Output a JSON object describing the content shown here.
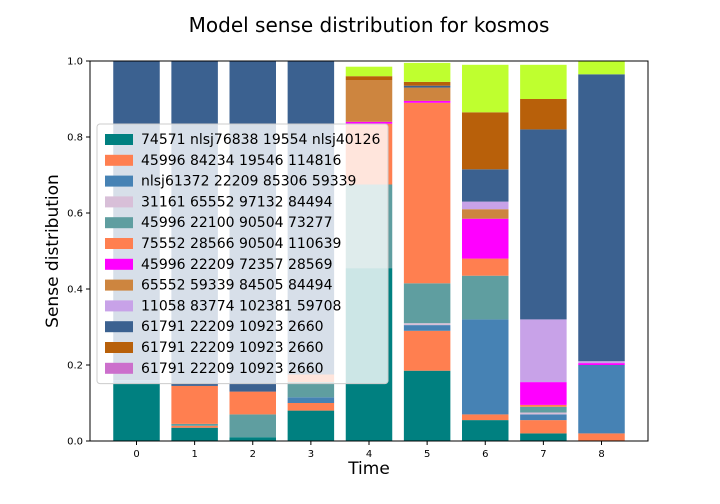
{
  "chart_data": {
    "type": "bar",
    "stacked": true,
    "title": "Model sense distribution for kosmos",
    "xlabel": "Time",
    "ylabel": "Sense distribution",
    "categories": [
      "0",
      "1",
      "2",
      "3",
      "4",
      "5",
      "6",
      "7",
      "8"
    ],
    "ylim": [
      0,
      1.0
    ],
    "yticks": [
      "0.0",
      "0.2",
      "0.4",
      "0.6",
      "0.8",
      "1.0"
    ],
    "grid": false,
    "legend_position": "center-left",
    "series": [
      {
        "name": "74571 nlsj76838 19554 nlsj40126",
        "color": "#008080",
        "values": [
          0.15,
          0.035,
          0.01,
          0.08,
          0.455,
          0.185,
          0.055,
          0.02,
          0.0
        ]
      },
      {
        "name": "45996 84234 19546 114816",
        "color": "#FF7F50",
        "values": [
          0.0,
          0.005,
          0.0,
          0.02,
          0.0,
          0.105,
          0.015,
          0.035,
          0.02
        ]
      },
      {
        "name": "nlsj61372 22209 85306 59339",
        "color": "#4682B4",
        "values": [
          0.01,
          0.0,
          0.0,
          0.015,
          0.0,
          0.015,
          0.25,
          0.015,
          0.18
        ]
      },
      {
        "name": "31161 65552 97132 84494",
        "color": "#D8BFD8",
        "values": [
          0.0,
          0.0,
          0.0,
          0.0,
          0.0,
          0.005,
          0.0,
          0.005,
          0.0
        ]
      },
      {
        "name": "45996 22100 90504 73277",
        "color": "#5F9EA0",
        "values": [
          0.0,
          0.005,
          0.06,
          0.04,
          0.22,
          0.105,
          0.115,
          0.015,
          0.0
        ]
      },
      {
        "name": "75552 28566 90504 110639",
        "color": "#FF7F50",
        "values": [
          0.0,
          0.1,
          0.06,
          0.02,
          0.16,
          0.475,
          0.045,
          0.005,
          0.0
        ]
      },
      {
        "name": "45996 22209 72357 28569",
        "color": "#FF00FF",
        "values": [
          0.0,
          0.0,
          0.0,
          0.0,
          0.005,
          0.005,
          0.105,
          0.06,
          0.005
        ]
      },
      {
        "name": "65552 59339 84505 84494",
        "color": "#CD853F",
        "values": [
          0.0,
          0.0,
          0.0,
          0.0,
          0.11,
          0.035,
          0.025,
          0.0,
          0.0
        ]
      },
      {
        "name": "11058 83774 102381 59708",
        "color": "#C8A2E8",
        "values": [
          0.0,
          0.0,
          0.0,
          0.0,
          0.0,
          0.0,
          0.02,
          0.165,
          0.005
        ]
      },
      {
        "name": "61791 22209 10923 2660",
        "color": "#3B6190",
        "values": [
          0.84,
          0.855,
          0.87,
          0.825,
          0.0,
          0.005,
          0.085,
          0.5,
          0.755
        ]
      },
      {
        "name": "61791 22209 10923 2660",
        "color": "#B8600A",
        "values": [
          0.0,
          0.0,
          0.0,
          0.0,
          0.01,
          0.01,
          0.15,
          0.08,
          0.0
        ]
      },
      {
        "name": "61791 22209 10923 2660",
        "color": "#CC6FCC",
        "values": [
          0.0,
          0.0,
          0.0,
          0.0,
          0.0,
          0.0,
          0.0,
          0.0,
          0.0
        ]
      },
      {
        "name": "",
        "color": "#BFFF2F",
        "values": [
          0.0,
          0.0,
          0.0,
          0.0,
          0.025,
          0.05,
          0.125,
          0.09,
          0.035
        ]
      }
    ]
  }
}
